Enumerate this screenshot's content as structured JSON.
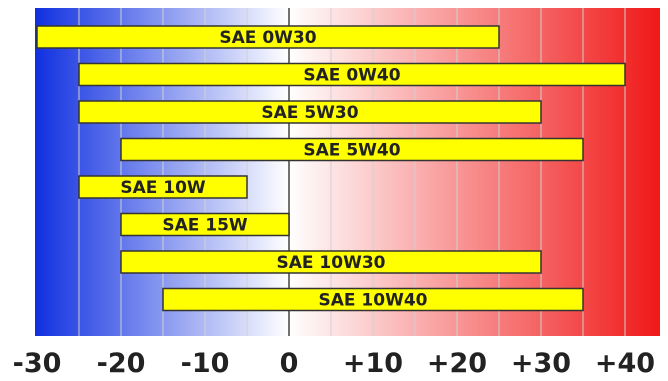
{
  "chart_data": {
    "type": "bar",
    "orientation": "horizontal-range",
    "title": "",
    "xlabel": "",
    "ylabel": "",
    "xlim": [
      -33,
      42
    ],
    "grid": true,
    "background": "temperature gradient blue (cold) to red (hot)",
    "x_ticks": [
      {
        "value": -30,
        "label": "-30"
      },
      {
        "value": -20,
        "label": "-20"
      },
      {
        "value": -10,
        "label": "-10"
      },
      {
        "value": 0,
        "label": "0"
      },
      {
        "value": 10,
        "label": "+10"
      },
      {
        "value": 20,
        "label": "+20"
      },
      {
        "value": 30,
        "label": "+30"
      },
      {
        "value": 40,
        "label": "+40"
      }
    ],
    "ranges": [
      {
        "label": "SAE 0W30",
        "low": -30,
        "high": 25
      },
      {
        "label": "SAE 0W40",
        "low": -25,
        "high": 40
      },
      {
        "label": "SAE 5W30",
        "low": -25,
        "high": 30
      },
      {
        "label": "SAE 5W40",
        "low": -20,
        "high": 35
      },
      {
        "label": "SAE 10W",
        "low": -25,
        "high": -5
      },
      {
        "label": "SAE 15W",
        "low": -20,
        "high": 0
      },
      {
        "label": "SAE 10W30",
        "low": -20,
        "high": 30
      },
      {
        "label": "SAE 10W40",
        "low": -15,
        "high": 35
      }
    ],
    "colors": {
      "bar_fill": "#ffff00",
      "bar_stroke": "#333333",
      "cold": "#1030e0",
      "neutral": "#ffffff",
      "hot": "#f01818",
      "grid": "#d0d0d0",
      "zero_line": "#444444"
    }
  }
}
